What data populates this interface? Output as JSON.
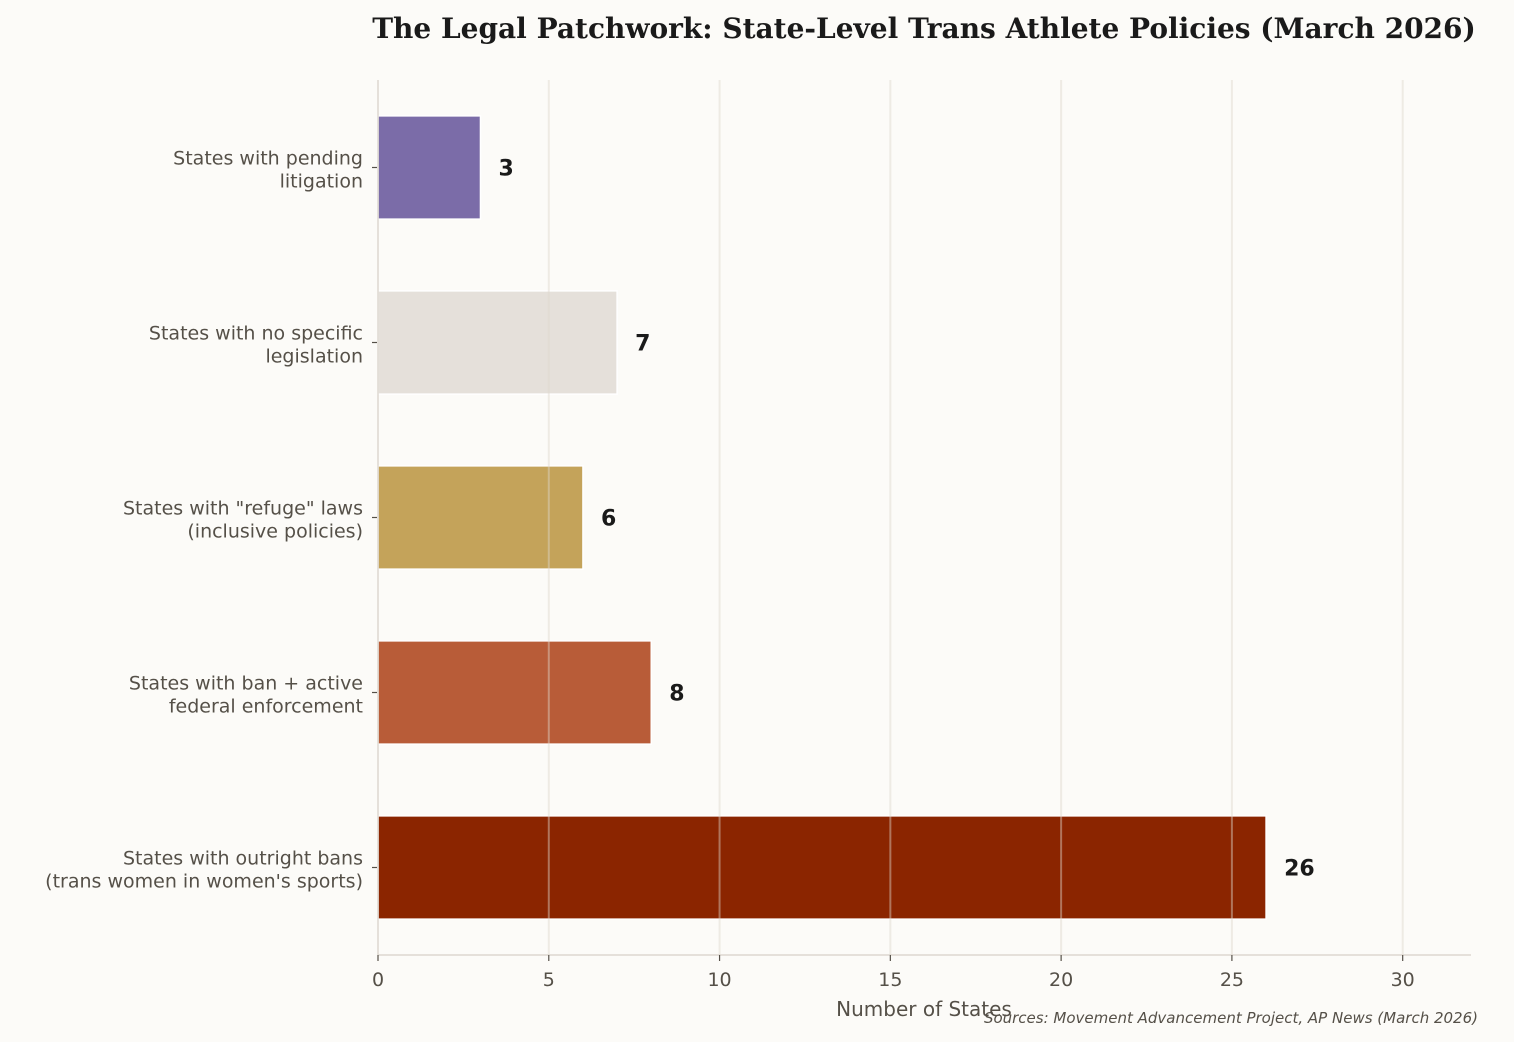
{
  "chart_data": {
    "type": "bar",
    "orientation": "horizontal",
    "title": "The Legal Patchwork: State-Level Trans Athlete Policies (March 2026)",
    "xlabel": "Number of States",
    "ylabel": "",
    "xlim": [
      0,
      32
    ],
    "xticks": [
      0,
      5,
      10,
      15,
      20,
      25,
      30
    ],
    "grid": "vertical",
    "categories": [
      [
        "States with pending",
        "litigation"
      ],
      [
        "States with no specific",
        "legislation"
      ],
      [
        "States with \"refuge\" laws",
        "(inclusive policies)"
      ],
      [
        "States with ban + active",
        "federal enforcement"
      ],
      [
        "States with outright bans",
        "(trans women in women's sports)"
      ]
    ],
    "values": [
      3,
      7,
      6,
      8,
      26
    ],
    "colors": [
      "#7b6ca8",
      "#e5e0da",
      "#c4a35a",
      "#b85c38",
      "#8b2500"
    ],
    "source": "Sources: Movement Advancement Project, AP News (March 2026)"
  }
}
